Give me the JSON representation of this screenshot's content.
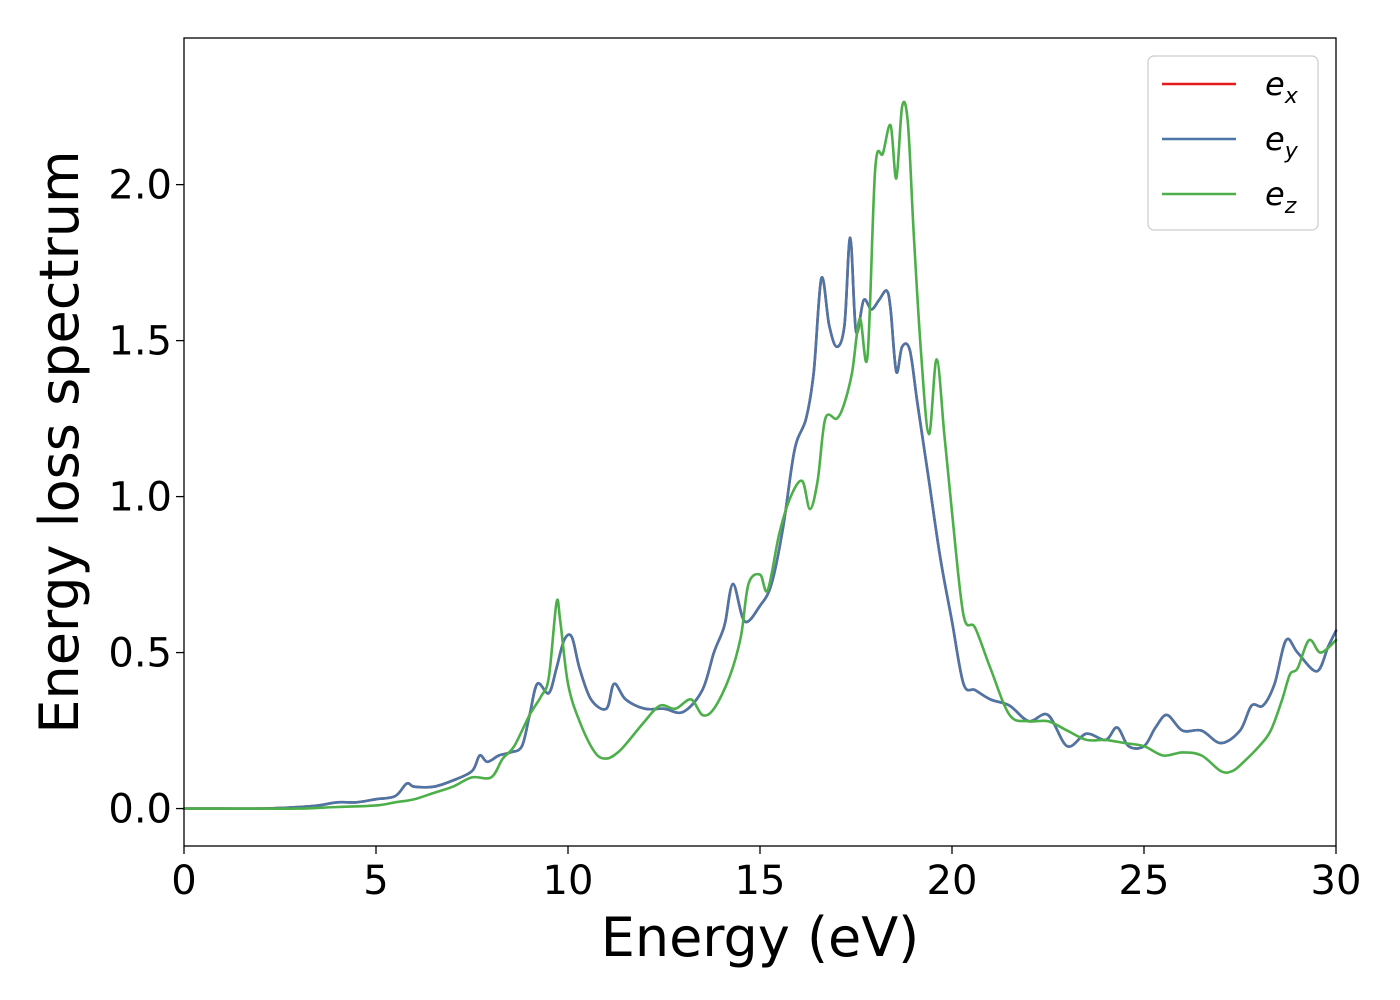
{
  "chart_data": {
    "type": "line",
    "title": "",
    "xlabel": "Energy (eV)",
    "ylabel": "Energy loss spectrum",
    "xlim": [
      0,
      30
    ],
    "ylim": [
      -0.12,
      2.47
    ],
    "xticks": [
      "0",
      "5",
      "10",
      "15",
      "20",
      "25",
      "30"
    ],
    "yticks": [
      "0.0",
      "0.5",
      "1.0",
      "1.5",
      "2.0"
    ],
    "grid": false,
    "legend_position": "top-right",
    "series": [
      {
        "name": "e_x",
        "label_base": "e",
        "label_sub": "x",
        "color": "#e41a1c",
        "x": [
          0,
          1,
          2,
          3,
          3.5,
          4,
          4.5,
          5,
          5.5,
          5.8,
          6,
          6.5,
          7,
          7.5,
          7.7,
          7.9,
          8.2,
          8.5,
          8.8,
          9,
          9.2,
          9.5,
          9.7,
          9.9,
          10.1,
          10.3,
          10.6,
          11,
          11.2,
          11.5,
          12,
          12.5,
          13,
          13.5,
          13.8,
          14,
          14.1,
          14.3,
          14.6,
          15,
          15.3,
          15.6,
          15.9,
          16.2,
          16.4,
          16.6,
          16.8,
          17,
          17.2,
          17.35,
          17.5,
          17.7,
          17.9,
          18.1,
          18.3,
          18.4,
          18.55,
          18.7,
          18.9,
          19.1,
          19.4,
          19.7,
          20,
          20.3,
          20.6,
          21,
          21.5,
          22,
          22.5,
          23,
          23.5,
          24,
          24.3,
          24.6,
          25,
          25.3,
          25.6,
          26,
          26.5,
          27,
          27.5,
          27.8,
          28.1,
          28.4,
          28.7,
          29,
          29.5,
          29.8,
          30
        ],
        "values": [
          0,
          0,
          0,
          0.005,
          0.01,
          0.02,
          0.02,
          0.03,
          0.04,
          0.08,
          0.07,
          0.07,
          0.09,
          0.12,
          0.17,
          0.15,
          0.17,
          0.18,
          0.2,
          0.3,
          0.4,
          0.37,
          0.45,
          0.54,
          0.55,
          0.45,
          0.35,
          0.32,
          0.4,
          0.35,
          0.32,
          0.32,
          0.31,
          0.38,
          0.5,
          0.56,
          0.6,
          0.72,
          0.6,
          0.65,
          0.72,
          0.9,
          1.15,
          1.25,
          1.4,
          1.7,
          1.55,
          1.48,
          1.55,
          1.83,
          1.53,
          1.63,
          1.6,
          1.63,
          1.66,
          1.6,
          1.4,
          1.48,
          1.47,
          1.3,
          1.05,
          0.8,
          0.6,
          0.4,
          0.38,
          0.35,
          0.33,
          0.28,
          0.3,
          0.2,
          0.24,
          0.22,
          0.26,
          0.2,
          0.2,
          0.26,
          0.3,
          0.25,
          0.25,
          0.21,
          0.25,
          0.33,
          0.33,
          0.4,
          0.54,
          0.5,
          0.44,
          0.52,
          0.57
        ]
      },
      {
        "name": "e_y",
        "label_base": "e",
        "label_sub": "y",
        "color": "#4a77a8",
        "x": [
          0,
          1,
          2,
          3,
          3.5,
          4,
          4.5,
          5,
          5.5,
          5.8,
          6,
          6.5,
          7,
          7.5,
          7.7,
          7.9,
          8.2,
          8.5,
          8.8,
          9,
          9.2,
          9.5,
          9.7,
          9.9,
          10.1,
          10.3,
          10.6,
          11,
          11.2,
          11.5,
          12,
          12.5,
          13,
          13.5,
          13.8,
          14,
          14.1,
          14.3,
          14.6,
          15,
          15.3,
          15.6,
          15.9,
          16.2,
          16.4,
          16.6,
          16.8,
          17,
          17.2,
          17.35,
          17.5,
          17.7,
          17.9,
          18.1,
          18.3,
          18.4,
          18.55,
          18.7,
          18.9,
          19.1,
          19.4,
          19.7,
          20,
          20.3,
          20.6,
          21,
          21.5,
          22,
          22.5,
          23,
          23.5,
          24,
          24.3,
          24.6,
          25,
          25.3,
          25.6,
          26,
          26.5,
          27,
          27.5,
          27.8,
          28.1,
          28.4,
          28.7,
          29,
          29.5,
          29.8,
          30
        ],
        "values": [
          0,
          0,
          0,
          0.005,
          0.01,
          0.02,
          0.02,
          0.03,
          0.04,
          0.08,
          0.07,
          0.07,
          0.09,
          0.12,
          0.17,
          0.15,
          0.17,
          0.18,
          0.2,
          0.3,
          0.4,
          0.37,
          0.45,
          0.54,
          0.55,
          0.45,
          0.35,
          0.32,
          0.4,
          0.35,
          0.32,
          0.32,
          0.31,
          0.38,
          0.5,
          0.56,
          0.6,
          0.72,
          0.6,
          0.65,
          0.72,
          0.9,
          1.15,
          1.25,
          1.4,
          1.7,
          1.55,
          1.48,
          1.55,
          1.83,
          1.53,
          1.63,
          1.6,
          1.63,
          1.66,
          1.6,
          1.4,
          1.48,
          1.47,
          1.3,
          1.05,
          0.8,
          0.6,
          0.4,
          0.38,
          0.35,
          0.33,
          0.28,
          0.3,
          0.2,
          0.24,
          0.22,
          0.26,
          0.2,
          0.2,
          0.26,
          0.3,
          0.25,
          0.25,
          0.21,
          0.25,
          0.33,
          0.33,
          0.4,
          0.54,
          0.5,
          0.44,
          0.52,
          0.57
        ]
      },
      {
        "name": "e_z",
        "label_base": "e",
        "label_sub": "z",
        "color": "#4daf4a",
        "x": [
          0,
          1,
          2,
          3,
          4,
          5,
          5.5,
          6,
          6.5,
          7,
          7.5,
          8,
          8.3,
          8.6,
          9,
          9.3,
          9.5,
          9.7,
          9.8,
          10,
          10.3,
          10.7,
          11,
          11.3,
          11.6,
          12,
          12.4,
          12.8,
          13.2,
          13.5,
          13.8,
          14.2,
          14.5,
          14.7,
          15,
          15.2,
          15.5,
          15.8,
          16.1,
          16.3,
          16.5,
          16.7,
          17,
          17.2,
          17.4,
          17.6,
          17.8,
          18,
          18.2,
          18.4,
          18.55,
          18.7,
          18.85,
          19,
          19.2,
          19.4,
          19.6,
          19.8,
          20,
          20.3,
          20.6,
          21,
          21.5,
          22,
          22.5,
          23,
          23.5,
          24,
          24.5,
          25,
          25.5,
          26,
          26.5,
          27,
          27.3,
          27.6,
          28,
          28.3,
          28.6,
          28.8,
          29,
          29.3,
          29.6,
          30
        ],
        "values": [
          0,
          0,
          0,
          0,
          0.005,
          0.01,
          0.02,
          0.03,
          0.05,
          0.07,
          0.1,
          0.1,
          0.16,
          0.2,
          0.3,
          0.36,
          0.42,
          0.66,
          0.6,
          0.4,
          0.28,
          0.18,
          0.16,
          0.18,
          0.22,
          0.28,
          0.33,
          0.32,
          0.35,
          0.3,
          0.32,
          0.42,
          0.55,
          0.72,
          0.75,
          0.7,
          0.88,
          1.0,
          1.05,
          0.96,
          1.05,
          1.25,
          1.25,
          1.3,
          1.4,
          1.57,
          1.45,
          2.05,
          2.1,
          2.19,
          2.02,
          2.25,
          2.2,
          1.85,
          1.45,
          1.2,
          1.44,
          1.2,
          0.95,
          0.62,
          0.58,
          0.45,
          0.3,
          0.28,
          0.28,
          0.25,
          0.22,
          0.22,
          0.21,
          0.2,
          0.17,
          0.18,
          0.17,
          0.12,
          0.12,
          0.15,
          0.2,
          0.25,
          0.35,
          0.43,
          0.45,
          0.54,
          0.5,
          0.54
        ]
      }
    ]
  }
}
